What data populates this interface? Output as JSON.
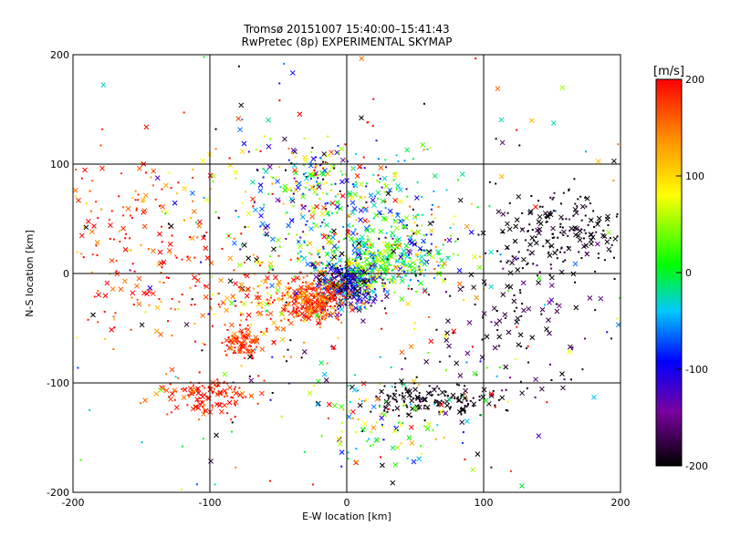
{
  "chart_data": {
    "type": "scatter",
    "title": "Tromsø 20151007 15:40:00–15:41:43",
    "subtitle": "RwPretec (8p) EXPERIMENTAL SKYMAP",
    "xlabel": "E-W location [km]",
    "ylabel": "N-S location [km]",
    "xlim": [
      -200,
      200
    ],
    "ylim": [
      -200,
      200
    ],
    "xticks": [
      -200,
      -100,
      0,
      100,
      200
    ],
    "yticks": [
      -200,
      -100,
      0,
      100,
      200
    ],
    "grid": true,
    "marker_kinds": [
      "cross",
      "dot"
    ],
    "colorbar": {
      "label": "[m/s]",
      "range": [
        -200,
        200
      ],
      "ticks": [
        -200,
        -100,
        0,
        100,
        200
      ],
      "colors": [
        "#000000",
        "#7a00a0",
        "#0000ff",
        "#00c8ff",
        "#00ff00",
        "#ffff00",
        "#ff8c00",
        "#ff0000"
      ]
    },
    "clusters": [
      {
        "x": 0,
        "y": -10,
        "sx": 12,
        "sy": 10,
        "n": 380,
        "v": -120,
        "dv": 70
      },
      {
        "x": -25,
        "y": -25,
        "sx": 12,
        "sy": 10,
        "n": 280,
        "v": 175,
        "dv": 30
      },
      {
        "x": 25,
        "y": 10,
        "sx": 22,
        "sy": 12,
        "n": 320,
        "v": 20,
        "dv": 50
      },
      {
        "x": 10,
        "y": 40,
        "sx": 40,
        "sy": 25,
        "n": 320,
        "v": -10,
        "dv": 90
      },
      {
        "x": -20,
        "y": 90,
        "sx": 30,
        "sy": 15,
        "n": 160,
        "v": 0,
        "dv": 110
      },
      {
        "x": -75,
        "y": -65,
        "sx": 6,
        "sy": 7,
        "n": 90,
        "v": 180,
        "dv": 20
      },
      {
        "x": -100,
        "y": -110,
        "sx": 18,
        "sy": 9,
        "n": 130,
        "v": 180,
        "dv": 25
      },
      {
        "x": 65,
        "y": -115,
        "sx": 28,
        "sy": 8,
        "n": 160,
        "v": -195,
        "dv": 8
      },
      {
        "x": 160,
        "y": 40,
        "sx": 25,
        "sy": 18,
        "n": 170,
        "v": -195,
        "dv": 8
      },
      {
        "x": 130,
        "y": -40,
        "sx": 30,
        "sy": 40,
        "n": 130,
        "v": -185,
        "dv": 20
      },
      {
        "x": -150,
        "y": 20,
        "sx": 35,
        "sy": 45,
        "n": 200,
        "v": 170,
        "dv": 40
      },
      {
        "x": 0,
        "y": 0,
        "sx": 110,
        "sy": 110,
        "n": 420,
        "v": 0,
        "dv": 200
      },
      {
        "x": 30,
        "y": -140,
        "sx": 25,
        "sy": 20,
        "n": 90,
        "v": 30,
        "dv": 80
      },
      {
        "x": -60,
        "y": -30,
        "sx": 25,
        "sy": 20,
        "n": 120,
        "v": 150,
        "dv": 60
      }
    ]
  }
}
